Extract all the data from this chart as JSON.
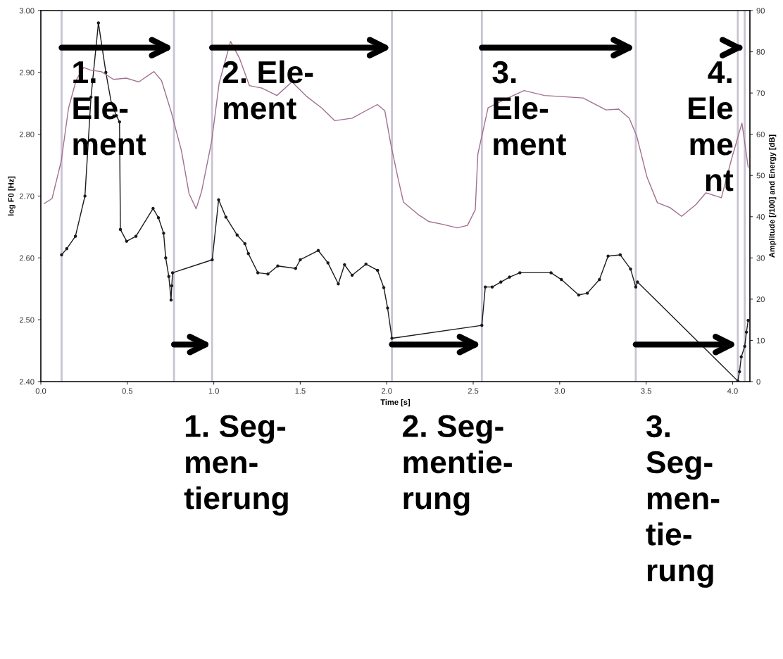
{
  "chart_data": {
    "type": "line",
    "xlabel": "Time [s]",
    "ylabel": "log F0 [Hz]",
    "y2label": "Amplitude [/100] and Energy [dB]",
    "xlim": [
      0,
      4.1
    ],
    "xticks": [
      {
        "value": 0,
        "label": "0.0"
      },
      {
        "value": 0.5,
        "label": "0.5"
      },
      {
        "value": 1,
        "label": "1.0"
      },
      {
        "value": 1.5,
        "label": "1.5"
      },
      {
        "value": 2,
        "label": "2.0"
      },
      {
        "value": 2.5,
        "label": "2.5"
      },
      {
        "value": 3,
        "label": "3.0"
      },
      {
        "value": 3.5,
        "label": "3.5"
      },
      {
        "value": 4,
        "label": "4.0"
      }
    ],
    "ylim": [
      2.4,
      3.0
    ],
    "yticks": [
      {
        "value": 2.4,
        "label": "2.40"
      },
      {
        "value": 2.5,
        "label": "2.50"
      },
      {
        "value": 2.6,
        "label": "2.60"
      },
      {
        "value": 2.7,
        "label": "2.70"
      },
      {
        "value": 2.8,
        "label": "2.80"
      },
      {
        "value": 2.9,
        "label": "2.90"
      },
      {
        "value": 3.0,
        "label": "3.00"
      }
    ],
    "y2lim": [
      0,
      90
    ],
    "y2ticks": [
      0,
      10,
      20,
      30,
      40,
      50,
      60,
      70,
      80,
      90
    ],
    "series": [
      {
        "color": "#1a1a1a",
        "marker": "circle",
        "x": [
          0.12,
          0.15,
          0.2,
          0.255,
          0.29,
          0.333,
          0.376,
          0.408,
          0.437,
          0.455,
          0.46,
          0.496,
          0.55,
          0.649,
          0.68,
          0.71,
          0.722,
          0.74,
          0.753,
          0.757,
          0.762,
          0.991,
          1.028,
          1.07,
          1.135,
          1.18,
          1.2,
          1.255,
          1.313,
          1.37,
          1.473,
          1.5,
          1.604,
          1.66,
          1.72,
          1.756,
          1.8,
          1.88,
          1.947,
          1.983,
          2.005,
          2.03,
          2.55,
          2.57,
          2.61,
          2.66,
          2.71,
          2.77,
          2.95,
          3.01,
          3.11,
          3.16,
          3.23,
          3.28,
          3.35,
          3.41,
          3.44,
          3.45,
          4.03,
          4.04,
          4.05,
          4.07,
          4.08,
          4.09
        ],
        "values": [
          2.605,
          2.615,
          2.635,
          2.7,
          2.86,
          2.98,
          2.9,
          2.85,
          2.83,
          2.82,
          2.646,
          2.627,
          2.635,
          2.68,
          2.665,
          2.64,
          2.6,
          2.57,
          2.532,
          2.555,
          2.576,
          2.597,
          2.694,
          2.666,
          2.637,
          2.623,
          2.607,
          2.576,
          2.574,
          2.587,
          2.583,
          2.597,
          2.612,
          2.592,
          2.558,
          2.589,
          2.572,
          2.59,
          2.58,
          2.552,
          2.519,
          2.47,
          2.491,
          2.553,
          2.553,
          2.561,
          2.569,
          2.576,
          2.576,
          2.565,
          2.54,
          2.543,
          2.565,
          2.603,
          2.605,
          2.582,
          2.553,
          2.561,
          2.401,
          2.416,
          2.44,
          2.457,
          2.48,
          2.499
        ]
      },
      {
        "axis": "y2",
        "color": "#a07090",
        "marker": "none",
        "x": [
          0.02,
          0.065,
          0.118,
          0.16,
          0.204,
          0.248,
          0.291,
          0.349,
          0.42,
          0.494,
          0.567,
          0.654,
          0.698,
          0.756,
          0.813,
          0.857,
          0.898,
          0.93,
          0.988,
          1.031,
          1.097,
          1.148,
          1.206,
          1.278,
          1.365,
          1.452,
          1.539,
          1.626,
          1.699,
          1.8,
          1.946,
          1.989,
          2.023,
          2.067,
          2.097,
          2.186,
          2.245,
          2.319,
          2.408,
          2.467,
          2.512,
          2.527,
          2.586,
          2.675,
          2.794,
          2.912,
          3.135,
          3.268,
          3.341,
          3.402,
          3.446,
          3.505,
          3.565,
          3.638,
          3.705,
          3.787,
          3.846,
          3.935,
          3.994,
          4.054,
          4.09
        ],
        "values": [
          43.2,
          44.4,
          53.5,
          66.3,
          73.1,
          76.2,
          75.5,
          75.2,
          73.3,
          73.6,
          72.7,
          75.2,
          73.0,
          65.1,
          56.0,
          45.6,
          41.9,
          46.2,
          58.4,
          72.4,
          82.5,
          78.5,
          71.8,
          71.2,
          69.4,
          72.7,
          69.1,
          66.3,
          63.3,
          63.9,
          67.2,
          65.7,
          57.7,
          49.0,
          43.5,
          40.4,
          38.8,
          38.2,
          37.3,
          37.9,
          41.7,
          55.2,
          66.4,
          68.3,
          70.6,
          69.4,
          68.8,
          65.9,
          66.1,
          63.9,
          59.5,
          49.6,
          43.4,
          42.2,
          40.1,
          42.9,
          45.8,
          44.6,
          54.0,
          62.7,
          52.0
        ]
      }
    ],
    "ref_lines": [
      {
        "axis": "x",
        "value": 0.12,
        "color": "#c9c3d3"
      },
      {
        "axis": "x",
        "value": 0.77,
        "color": "#c9c3d3"
      },
      {
        "axis": "x",
        "value": 0.99,
        "color": "#c9c3d3"
      },
      {
        "axis": "x",
        "value": 2.03,
        "color": "#c9c3d3"
      },
      {
        "axis": "x",
        "value": 2.55,
        "color": "#c9c3d3"
      },
      {
        "axis": "x",
        "value": 3.44,
        "color": "#c9c3d3"
      },
      {
        "axis": "x",
        "value": 4.03,
        "color": "#c9c3d3"
      },
      {
        "axis": "x",
        "value": 4.07,
        "color": "#c9c3d3"
      }
    ],
    "annotations": [
      "1.\nEle-\nment",
      "2. Ele-\nment",
      "3.\nEle-\nment",
      "4.\nEle\nme\nnt",
      "1. Seg-\nmen-\ntierung",
      "2. Seg-\nmentie-\nrung",
      "3.\nSeg-\nmen-\ntie-\nrung"
    ]
  }
}
